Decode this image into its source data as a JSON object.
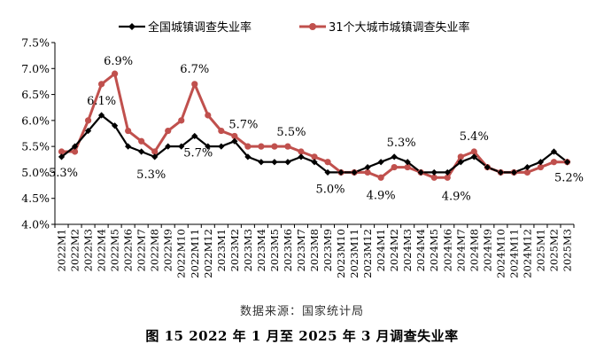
{
  "chart_data": {
    "type": "line",
    "y_tick_labels": [
      "4.0%",
      "4.5%",
      "5.0%",
      "5.5%",
      "6.0%",
      "6.5%",
      "7.0%",
      "7.5%"
    ],
    "ylim": [
      4.0,
      7.5
    ],
    "y_step": 0.5,
    "grid": false,
    "legend_position": "top",
    "categories": [
      "2022M1",
      "2022M2",
      "2022M3",
      "2022M4",
      "2022M5",
      "2022M6",
      "2022M7",
      "2022M8",
      "2022M9",
      "2022M10",
      "2022M11",
      "2022M12",
      "2023M1",
      "2023M2",
      "2023M3",
      "2023M4",
      "2023M5",
      "2023M6",
      "2023M7",
      "2023M8",
      "2023M9",
      "2023M10",
      "2023M11",
      "2023M12",
      "2024M1",
      "2024M2",
      "2024M3",
      "2024M4",
      "2024M5",
      "2024M6",
      "2024M7",
      "2024M8",
      "2024M9",
      "2024M10",
      "2024M11",
      "2024M12",
      "2025M1",
      "2025M2",
      "2025M3"
    ],
    "series": [
      {
        "name": "全国城镇调查失业率",
        "color": "#000000",
        "marker": "diamond",
        "values": [
          5.3,
          5.5,
          5.8,
          6.1,
          5.9,
          5.5,
          5.4,
          5.3,
          5.5,
          5.5,
          5.7,
          5.5,
          5.5,
          5.6,
          5.3,
          5.2,
          5.2,
          5.2,
          5.3,
          5.2,
          5.0,
          5.0,
          5.0,
          5.1,
          5.2,
          5.3,
          5.2,
          5.0,
          5.0,
          5.0,
          5.2,
          5.3,
          5.1,
          5.0,
          5.0,
          5.1,
          5.2,
          5.4,
          5.2
        ]
      },
      {
        "name": "31个大城市城镇调查失业率",
        "color": "#c0504d",
        "marker": "circle",
        "values": [
          5.4,
          5.4,
          6.0,
          6.7,
          6.9,
          5.8,
          5.6,
          5.4,
          5.8,
          6.0,
          6.7,
          6.1,
          5.8,
          5.7,
          5.5,
          5.5,
          5.5,
          5.5,
          5.4,
          5.3,
          5.2,
          5.0,
          5.0,
          5.0,
          4.9,
          5.1,
          5.1,
          5.0,
          4.9,
          4.9,
          5.3,
          5.4,
          5.1,
          5.0,
          5.0,
          5.0,
          5.1,
          5.2,
          5.2
        ]
      }
    ],
    "annotations": [
      {
        "text": "5.3%",
        "index": 0
      },
      {
        "text": "6.1%",
        "index": 3
      },
      {
        "text": "6.9%",
        "index": 4
      },
      {
        "text": "5.3%",
        "index": 7
      },
      {
        "text": "6.7%",
        "index": 10
      },
      {
        "text": "5.7%",
        "index": 10
      },
      {
        "text": "5.7%",
        "index": 13
      },
      {
        "text": "5.5%",
        "index": 17
      },
      {
        "text": "5.0%",
        "index": 20
      },
      {
        "text": "4.9%",
        "index": 24
      },
      {
        "text": "5.3%",
        "index": 25
      },
      {
        "text": "4.9%",
        "index": 29
      },
      {
        "text": "5.4%",
        "index": 31
      },
      {
        "text": "5.2%",
        "index": 38
      }
    ]
  },
  "source_text": "数据来源：国家统计局",
  "caption": "图 15  2022 年 1 月至 2025 年 3 月调查失业率"
}
